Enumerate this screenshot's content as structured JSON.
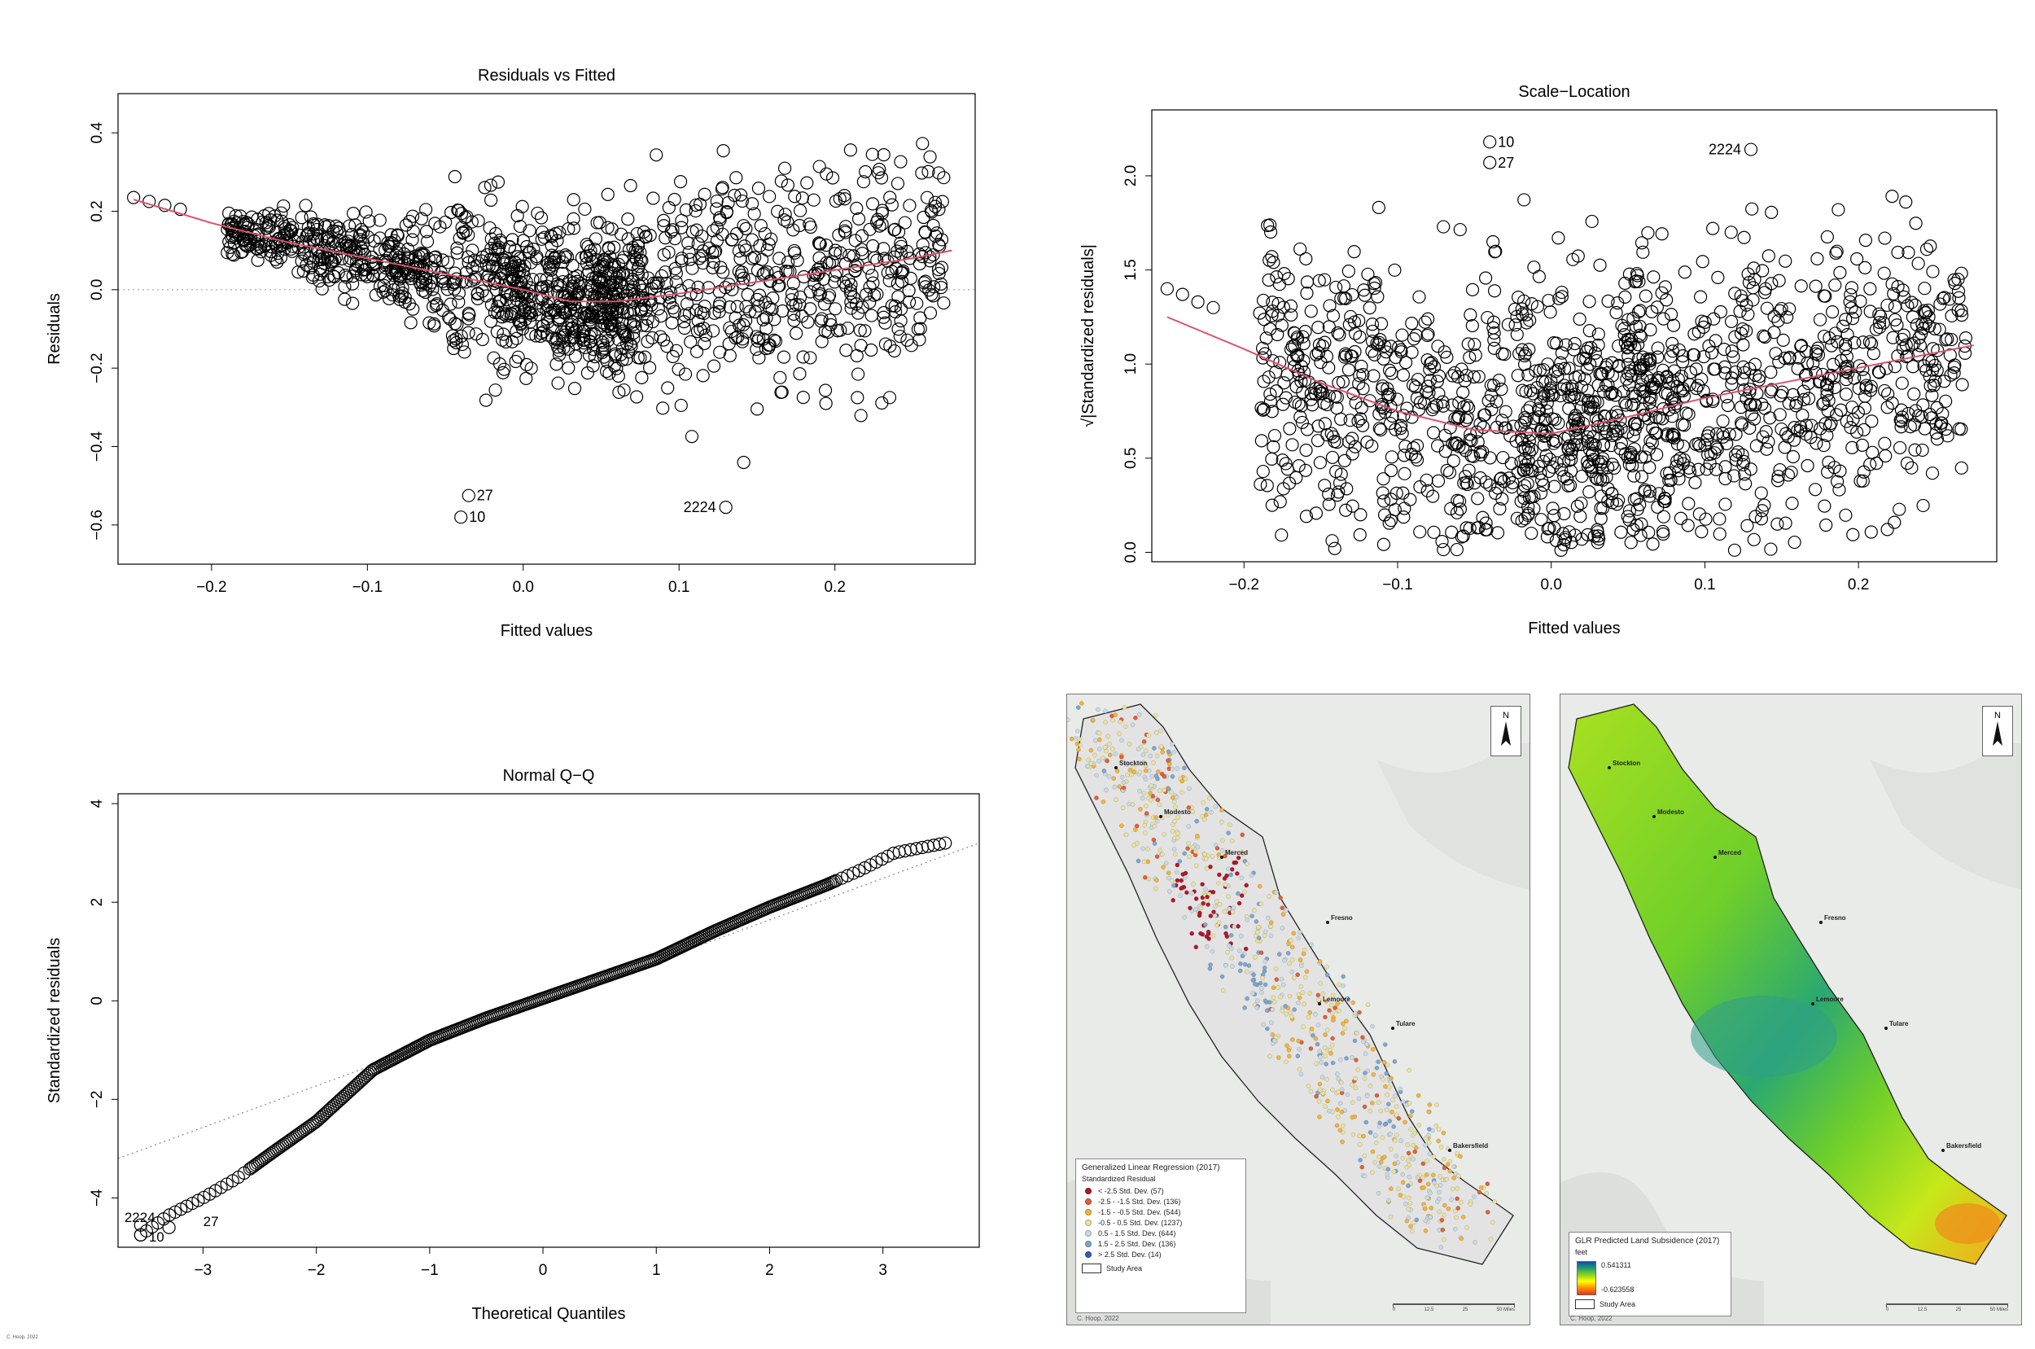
{
  "chart_data": [
    {
      "type": "scatter",
      "title": "Residuals vs Fitted",
      "xlabel": "Fitted values",
      "ylabel": "Residuals",
      "xlim": [
        -0.26,
        0.29
      ],
      "ylim": [
        -0.7,
        0.5
      ],
      "xticks": [
        -0.2,
        -0.1,
        0.0,
        0.1,
        0.2
      ],
      "xtick_labels": [
        "−0.2",
        "−0.1",
        "0.0",
        "0.1",
        "0.2"
      ],
      "yticks": [
        -0.6,
        -0.4,
        -0.2,
        0.0,
        0.2,
        0.4
      ],
      "ytick_labels": [
        "−0.6",
        "−0.4",
        "−0.2",
        "0.0",
        "0.2",
        "0.4"
      ],
      "reference_line": 0,
      "smooth": {
        "x": [
          -0.25,
          -0.2,
          -0.15,
          -0.1,
          -0.05,
          0.0,
          0.03,
          0.06,
          0.1,
          0.15,
          0.2,
          0.25,
          0.275
        ],
        "y": [
          0.23,
          0.17,
          0.12,
          0.08,
          0.04,
          0.0,
          -0.03,
          -0.03,
          -0.01,
          0.02,
          0.05,
          0.08,
          0.1
        ]
      },
      "annotations": [
        {
          "label": "27",
          "x": -0.035,
          "y": -0.525
        },
        {
          "label": "10",
          "x": -0.04,
          "y": -0.58
        },
        {
          "label": "2224",
          "x": 0.13,
          "y": -0.555
        }
      ]
    },
    {
      "type": "scatter",
      "title": "Scale−Location",
      "xlabel": "Fitted values",
      "ylabel": "√|Standardized residuals|",
      "xlim": [
        -0.26,
        0.29
      ],
      "ylim": [
        -0.05,
        2.35
      ],
      "xticks": [
        -0.2,
        -0.1,
        0.0,
        0.1,
        0.2
      ],
      "xtick_labels": [
        "−0.2",
        "−0.1",
        "0.0",
        "0.1",
        "0.2"
      ],
      "yticks": [
        0.0,
        0.5,
        1.0,
        1.5,
        2.0
      ],
      "ytick_labels": [
        "0.0",
        "0.5",
        "1.0",
        "1.5",
        "2.0"
      ],
      "smooth": {
        "x": [
          -0.25,
          -0.2,
          -0.15,
          -0.1,
          -0.05,
          0.0,
          0.05,
          0.1,
          0.15,
          0.2,
          0.25,
          0.275
        ],
        "y": [
          1.25,
          1.08,
          0.9,
          0.75,
          0.65,
          0.63,
          0.72,
          0.82,
          0.9,
          0.98,
          1.06,
          1.1
        ]
      },
      "annotations": [
        {
          "label": "10",
          "x": -0.04,
          "y": 2.18
        },
        {
          "label": "27",
          "x": -0.04,
          "y": 2.07
        },
        {
          "label": "2224",
          "x": 0.13,
          "y": 2.14
        }
      ]
    },
    {
      "type": "scatter",
      "title": "Normal Q−Q",
      "xlabel": "Theoretical Quantiles",
      "ylabel": "Standardized residuals",
      "xlim": [
        -3.75,
        3.85
      ],
      "ylim": [
        -5.0,
        4.2
      ],
      "xticks": [
        -3,
        -2,
        -1,
        0,
        1,
        2,
        3
      ],
      "xtick_labels": [
        "−3",
        "−2",
        "−1",
        "0",
        "1",
        "2",
        "3"
      ],
      "yticks": [
        -4,
        -2,
        0,
        2,
        4
      ],
      "ytick_labels": [
        "−4",
        "−2",
        "0",
        "2",
        "4"
      ],
      "qq_curve": {
        "x": [
          -3.55,
          -3.3,
          -3.0,
          -2.7,
          -2.4,
          -2.0,
          -1.5,
          -1.0,
          -0.5,
          0.0,
          0.5,
          1.0,
          1.5,
          2.0,
          2.5,
          2.8,
          3.1,
          3.55
        ],
        "y": [
          -4.75,
          -4.35,
          -4.0,
          -3.6,
          -3.1,
          -2.45,
          -1.4,
          -0.8,
          -0.35,
          0.05,
          0.45,
          0.85,
          1.4,
          1.9,
          2.35,
          2.65,
          3.0,
          3.2
        ]
      },
      "reference_line": {
        "x": [
          -3.75,
          3.85
        ],
        "y": [
          -3.2,
          3.2
        ]
      },
      "annotations": [
        {
          "label": "27",
          "x": -3.3,
          "y": -4.6
        },
        {
          "label": "2224",
          "x": -3.55,
          "y": -4.55
        },
        {
          "label": "10",
          "x": -3.55,
          "y": -4.75
        }
      ]
    }
  ],
  "maps": {
    "residual_map": {
      "cities": [
        "Stockton",
        "Modesto",
        "Merced",
        "Fresno",
        "Lemoore",
        "Tulare",
        "Bakersfield"
      ],
      "legend_title": "Generalized Linear Regression (2017)",
      "legend_subtitle": "Standardized Residual",
      "legend_items": [
        {
          "label": "< -2.5 Std. Dev. (57)",
          "color": "#b2182b"
        },
        {
          "label": "-2.5 - -1.5 Std. Dev. (136)",
          "color": "#e0603a"
        },
        {
          "label": "-1.5 - -0.5 Std. Dev. (544)",
          "color": "#f2b33c"
        },
        {
          "label": "-0.5 - 0.5 Std. Dev. (1237)",
          "color": "#e9e2a0"
        },
        {
          "label": "0.5 - 1.5 Std. Dev. (644)",
          "color": "#c9d9e6"
        },
        {
          "label": "1.5 - 2.5 Std. Dev. (136)",
          "color": "#7fa6cf"
        },
        {
          "label": "> 2.5 Std. Dev. (14)",
          "color": "#2f5fa8"
        }
      ],
      "study_area": "Study Area",
      "credit": "C. Hoop, 2022",
      "scale_labels": [
        "0",
        "12.5",
        "25",
        "50 Miles"
      ]
    },
    "subsidence_map": {
      "cities": [
        "Stockton",
        "Modesto",
        "Merced",
        "Fresno",
        "Lemoore",
        "Tulare",
        "Bakersfield"
      ],
      "legend_title": "GLR Predicted Land Subsidence (2017)",
      "legend_unit": "feet",
      "legend_high": "0.541311",
      "legend_low": "-0.623558",
      "study_area": "Study Area",
      "credit": "C. Hoop, 2022",
      "scale_labels": [
        "0",
        "12.5",
        "25",
        "50 Miles"
      ]
    },
    "north_label": "N"
  },
  "page_credit": "C. Hoop, 2022"
}
